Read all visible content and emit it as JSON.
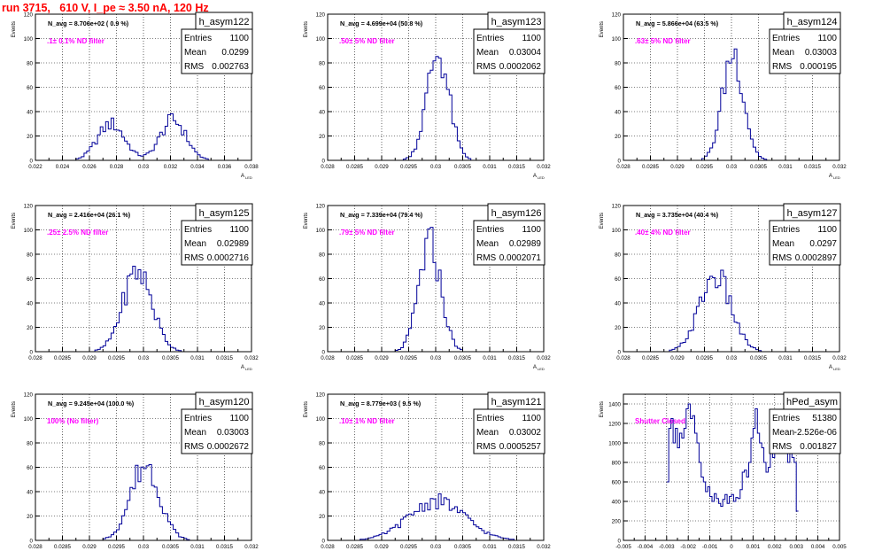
{
  "page_title": "run 3715,   610 V, I_pe ≈ 3.50 nA, 120 Hz",
  "axis_titles": {
    "x": "A",
    "x_sub": "LED",
    "y": "Events"
  },
  "colors": {
    "title": "#ff0000",
    "histogram": "#000099",
    "annotation": "#ff00ff",
    "frame": "#000000",
    "grid": "#000000"
  },
  "chart_data": [
    {
      "type": "histogram",
      "name": "h_asym122",
      "stats": {
        "entries_label": "Entries",
        "entries": "1100",
        "mean_label": "Mean",
        "mean": "0.0299",
        "rms_label": "RMS",
        "rms": "0.002763"
      },
      "navg_text": "N_avg = 8.706e+02 ( 0.9 %)",
      "filter_text": ".1± 0.1% ND filter",
      "xlim": [
        0.022,
        0.038
      ],
      "ylim": [
        0,
        120
      ],
      "xticks": [
        0.022,
        0.024,
        0.026,
        0.028,
        0.03,
        0.032,
        0.034,
        0.036,
        0.038
      ],
      "xtick_labels": [
        "0.022",
        "0.024",
        "0.026",
        "0.028",
        "0.03",
        "0.032",
        "0.034",
        "0.036",
        "0.038"
      ],
      "yticks": [
        0,
        20,
        40,
        60,
        80,
        100,
        120
      ],
      "ytick_labels": [
        "0",
        "20",
        "40",
        "60",
        "80",
        "100",
        "120"
      ],
      "peaks": [
        {
          "mu": 0.0276,
          "sigma": 0.001,
          "amp": 30
        },
        {
          "mu": 0.0322,
          "sigma": 0.00095,
          "amp": 33
        }
      ],
      "bin_width": 0.0002,
      "grid": true
    },
    {
      "type": "histogram",
      "name": "h_asym123",
      "stats": {
        "entries_label": "Entries",
        "entries": "1100",
        "mean_label": "Mean",
        "mean": "0.03004",
        "rms_label": "RMS",
        "rms": "0.0002062"
      },
      "navg_text": "N_avg = 4.699e+04 (50.8 %)",
      "filter_text": ".50± 5% ND filter",
      "xlim": [
        0.028,
        0.032
      ],
      "ylim": [
        0,
        120
      ],
      "xticks": [
        0.028,
        0.0285,
        0.029,
        0.0295,
        0.03,
        0.0305,
        0.031,
        0.0315,
        0.032
      ],
      "xtick_labels": [
        "0.028",
        "0.0285",
        "0.029",
        "0.0295",
        "0.03",
        "0.0305",
        "0.031",
        "0.0315",
        "0.032"
      ],
      "yticks": [
        0,
        20,
        40,
        60,
        80,
        100,
        120
      ],
      "ytick_labels": [
        "0",
        "20",
        "40",
        "60",
        "80",
        "100",
        "120"
      ],
      "peaks": [
        {
          "mu": 0.03004,
          "sigma": 0.000205,
          "amp": 88
        }
      ],
      "bin_width": 5e-05,
      "grid": true
    },
    {
      "type": "histogram",
      "name": "h_asym124",
      "stats": {
        "entries_label": "Entries",
        "entries": "1100",
        "mean_label": "Mean",
        "mean": "0.03003",
        "rms_label": "RMS",
        "rms": "0.000195"
      },
      "navg_text": "N_avg = 5.866e+04 (63.5 %)",
      "filter_text": ".63± 5% ND filter",
      "xlim": [
        0.028,
        0.032
      ],
      "ylim": [
        0,
        120
      ],
      "xticks": [
        0.028,
        0.0285,
        0.029,
        0.0295,
        0.03,
        0.0305,
        0.031,
        0.0315,
        0.032
      ],
      "xtick_labels": [
        "0.028",
        "0.0285",
        "0.029",
        "0.0295",
        "0.03",
        "0.0305",
        "0.031",
        "0.0315",
        "0.032"
      ],
      "yticks": [
        0,
        20,
        40,
        60,
        80,
        100,
        120
      ],
      "ytick_labels": [
        "0",
        "20",
        "40",
        "60",
        "80",
        "100",
        "120"
      ],
      "peaks": [
        {
          "mu": 0.03003,
          "sigma": 0.000195,
          "amp": 88
        }
      ],
      "bin_width": 5e-05,
      "grid": true
    },
    {
      "type": "histogram",
      "name": "h_asym125",
      "stats": {
        "entries_label": "Entries",
        "entries": "1100",
        "mean_label": "Mean",
        "mean": "0.02989",
        "rms_label": "RMS",
        "rms": "0.0002716"
      },
      "navg_text": "N_avg = 2.416e+04 (26.1 %)",
      "filter_text": ".25± 2.5% ND filter",
      "xlim": [
        0.028,
        0.032
      ],
      "ylim": [
        0,
        120
      ],
      "xticks": [
        0.028,
        0.0285,
        0.029,
        0.0295,
        0.03,
        0.0305,
        0.031,
        0.0315,
        0.032
      ],
      "xtick_labels": [
        "0.028",
        "0.0285",
        "0.029",
        "0.0295",
        "0.03",
        "0.0305",
        "0.031",
        "0.0315",
        "0.032"
      ],
      "yticks": [
        0,
        20,
        40,
        60,
        80,
        100,
        120
      ],
      "ytick_labels": [
        "0",
        "20",
        "40",
        "60",
        "80",
        "100",
        "120"
      ],
      "peaks": [
        {
          "mu": 0.02989,
          "sigma": 0.00027,
          "amp": 66
        }
      ],
      "bin_width": 5e-05,
      "grid": true
    },
    {
      "type": "histogram",
      "name": "h_asym126",
      "stats": {
        "entries_label": "Entries",
        "entries": "1100",
        "mean_label": "Mean",
        "mean": "0.02989",
        "rms_label": "RMS",
        "rms": "0.0002071"
      },
      "navg_text": "N_avg = 7.339e+04 (79.4 %)",
      "filter_text": ".79± 5% ND filter",
      "xlim": [
        0.028,
        0.032
      ],
      "ylim": [
        0,
        120
      ],
      "xticks": [
        0.028,
        0.0285,
        0.029,
        0.0295,
        0.03,
        0.0305,
        0.031,
        0.0315,
        0.032
      ],
      "xtick_labels": [
        "0.028",
        "0.0285",
        "0.029",
        "0.0295",
        "0.03",
        "0.0305",
        "0.031",
        "0.0315",
        "0.032"
      ],
      "yticks": [
        0,
        20,
        40,
        60,
        80,
        100,
        120
      ],
      "ytick_labels": [
        "0",
        "20",
        "40",
        "60",
        "80",
        "100",
        "120"
      ],
      "peaks": [
        {
          "mu": 0.02989,
          "sigma": 0.000205,
          "amp": 88
        }
      ],
      "bin_width": 5e-05,
      "grid": true
    },
    {
      "type": "histogram",
      "name": "h_asym127",
      "stats": {
        "entries_label": "Entries",
        "entries": "1100",
        "mean_label": "Mean",
        "mean": "0.0297",
        "rms_label": "RMS",
        "rms": "0.0002897"
      },
      "navg_text": "N_avg = 3.735e+04 (40.4 %)",
      "filter_text": ".40± 4% ND filter",
      "xlim": [
        0.028,
        0.032
      ],
      "ylim": [
        0,
        120
      ],
      "xticks": [
        0.028,
        0.0285,
        0.029,
        0.0295,
        0.03,
        0.0305,
        0.031,
        0.0315,
        0.032
      ],
      "xtick_labels": [
        "0.028",
        "0.0285",
        "0.029",
        "0.0295",
        "0.03",
        "0.0305",
        "0.031",
        "0.0315",
        "0.032"
      ],
      "yticks": [
        0,
        20,
        40,
        60,
        80,
        100,
        120
      ],
      "ytick_labels": [
        "0",
        "20",
        "40",
        "60",
        "80",
        "100",
        "120"
      ],
      "peaks": [
        {
          "mu": 0.0297,
          "sigma": 0.00029,
          "amp": 62
        }
      ],
      "bin_width": 5e-05,
      "grid": true
    },
    {
      "type": "histogram",
      "name": "h_asym120",
      "stats": {
        "entries_label": "Entries",
        "entries": "1100",
        "mean_label": "Mean",
        "mean": "0.03003",
        "rms_label": "RMS",
        "rms": "0.0002672"
      },
      "navg_text": "N_avg = 9.245e+04 (100.0 %)",
      "filter_text": "100% (No filter)",
      "xlim": [
        0.028,
        0.032
      ],
      "ylim": [
        0,
        120
      ],
      "xticks": [
        0.028,
        0.0285,
        0.029,
        0.0295,
        0.03,
        0.0305,
        0.031,
        0.0315,
        0.032
      ],
      "xtick_labels": [
        "0.028",
        "0.0285",
        "0.029",
        "0.0295",
        "0.03",
        "0.0305",
        "0.031",
        "0.0315",
        "0.032"
      ],
      "yticks": [
        0,
        20,
        40,
        60,
        80,
        100,
        120
      ],
      "ytick_labels": [
        "0",
        "20",
        "40",
        "60",
        "80",
        "100",
        "120"
      ],
      "peaks": [
        {
          "mu": 0.03003,
          "sigma": 0.00027,
          "amp": 62
        }
      ],
      "bin_width": 5e-05,
      "grid": true
    },
    {
      "type": "histogram",
      "name": "h_asym121",
      "stats": {
        "entries_label": "Entries",
        "entries": "1100",
        "mean_label": "Mean",
        "mean": "0.03002",
        "rms_label": "RMS",
        "rms": "0.0005257"
      },
      "navg_text": "N_avg = 8.779e+03 ( 9.5 %)",
      "filter_text": ".10± 1% ND filter",
      "xlim": [
        0.028,
        0.032
      ],
      "ylim": [
        0,
        120
      ],
      "xticks": [
        0.028,
        0.0285,
        0.029,
        0.0295,
        0.03,
        0.0305,
        0.031,
        0.0315,
        0.032
      ],
      "xtick_labels": [
        "0.028",
        "0.0285",
        "0.029",
        "0.0295",
        "0.03",
        "0.0305",
        "0.031",
        "0.0315",
        "0.032"
      ],
      "yticks": [
        0,
        20,
        40,
        60,
        80,
        100,
        120
      ],
      "ytick_labels": [
        "0",
        "20",
        "40",
        "60",
        "80",
        "100",
        "120"
      ],
      "peaks": [
        {
          "mu": 0.03002,
          "sigma": 0.00052,
          "amp": 32
        }
      ],
      "bin_width": 5e-05,
      "grid": true
    },
    {
      "type": "histogram",
      "name": "hPed_asym",
      "stats": {
        "entries_label": "Entries",
        "entries": "51380",
        "mean_label": "Mean",
        "mean": "-2.526e-06",
        "rms_label": "RMS",
        "rms": "0.001827"
      },
      "navg_text": "",
      "filter_text": "Shutter Closed",
      "xlim": [
        -0.005,
        0.005
      ],
      "ylim": [
        0,
        1500
      ],
      "xticks": [
        -0.005,
        -0.004,
        -0.003,
        -0.002,
        -0.001,
        0,
        0.001,
        0.002,
        0.003,
        0.004,
        0.005
      ],
      "xtick_labels": [
        "-0.005",
        "-0.004",
        "-0.003",
        "-0.002",
        "-0.001",
        "0",
        "0.001",
        "0.002",
        "0.003",
        "0.004",
        "0.005"
      ],
      "yticks": [
        0,
        200,
        400,
        600,
        800,
        1000,
        1200,
        1400
      ],
      "ytick_labels": [
        "0",
        "200",
        "400",
        "600",
        "800",
        "1000",
        "1200",
        "1400"
      ],
      "profile": [
        [
          -0.003,
          600
        ],
        [
          -0.0029,
          1150
        ],
        [
          -0.0028,
          1250
        ],
        [
          -0.0027,
          1000
        ],
        [
          -0.0026,
          1150
        ],
        [
          -0.0025,
          950
        ],
        [
          -0.0024,
          1100
        ],
        [
          -0.0023,
          1050
        ],
        [
          -0.0022,
          1150
        ],
        [
          -0.0021,
          1350
        ],
        [
          -0.002,
          1400
        ],
        [
          -0.0019,
          1250
        ],
        [
          -0.0018,
          1280
        ],
        [
          -0.0017,
          1100
        ],
        [
          -0.0016,
          1000
        ],
        [
          -0.0015,
          800
        ],
        [
          -0.0014,
          650
        ],
        [
          -0.0013,
          600
        ],
        [
          -0.0012,
          500
        ],
        [
          -0.0011,
          550
        ],
        [
          -0.001,
          450
        ],
        [
          -0.0009,
          400
        ],
        [
          -0.0008,
          480
        ],
        [
          -0.0007,
          430
        ],
        [
          -0.0006,
          380
        ],
        [
          -0.0005,
          350
        ],
        [
          -0.0004,
          420
        ],
        [
          -0.0003,
          470
        ],
        [
          -0.0002,
          380
        ],
        [
          -0.0001,
          450
        ],
        [
          0.0,
          470
        ],
        [
          0.0001,
          400
        ],
        [
          0.0002,
          440
        ],
        [
          0.0003,
          430
        ],
        [
          0.0004,
          520
        ],
        [
          0.0005,
          700
        ],
        [
          0.0006,
          720
        ],
        [
          0.0007,
          650
        ],
        [
          0.0008,
          800
        ],
        [
          0.0009,
          1050
        ],
        [
          0.001,
          1150
        ],
        [
          0.0011,
          1350
        ],
        [
          0.0012,
          1100
        ],
        [
          0.0013,
          1000
        ],
        [
          0.0014,
          950
        ],
        [
          0.0015,
          800
        ],
        [
          0.0016,
          700
        ],
        [
          0.0017,
          750
        ],
        [
          0.0018,
          950
        ],
        [
          0.0019,
          850
        ],
        [
          0.002,
          1000
        ],
        [
          0.0021,
          1250
        ],
        [
          0.0022,
          1050
        ],
        [
          0.0023,
          1000
        ],
        [
          0.0024,
          900
        ],
        [
          0.0025,
          1050
        ],
        [
          0.0026,
          800
        ],
        [
          0.0027,
          900
        ],
        [
          0.0028,
          850
        ],
        [
          0.0029,
          800
        ],
        [
          0.003,
          300
        ]
      ],
      "bin_width": 0.0001,
      "grid": true
    }
  ]
}
